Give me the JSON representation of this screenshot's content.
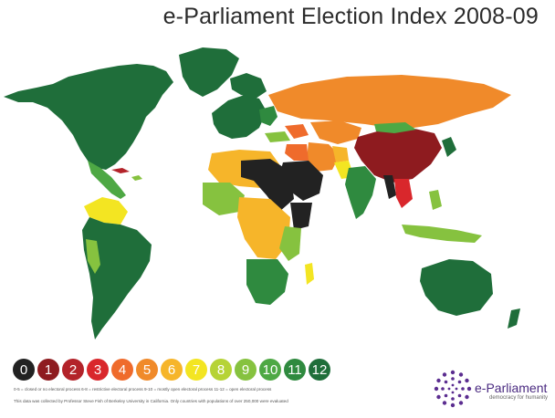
{
  "title": "e-Parliament Election Index 2008-09",
  "legend": {
    "items": [
      {
        "label": "0",
        "color": "#222222"
      },
      {
        "label": "1",
        "color": "#8e1b1f"
      },
      {
        "label": "2",
        "color": "#b3232a"
      },
      {
        "label": "3",
        "color": "#d9272c"
      },
      {
        "label": "4",
        "color": "#ef6b2c"
      },
      {
        "label": "5",
        "color": "#f08a2a"
      },
      {
        "label": "6",
        "color": "#f6b52a"
      },
      {
        "label": "7",
        "color": "#f3e522"
      },
      {
        "label": "8",
        "color": "#b6d336"
      },
      {
        "label": "9",
        "color": "#86c23f"
      },
      {
        "label": "10",
        "color": "#4ea844"
      },
      {
        "label": "11",
        "color": "#2f8a3f"
      },
      {
        "label": "12",
        "color": "#1f6e3a"
      }
    ],
    "description": "0-5 = closed or no electoral process   6-8 = restrictive electoral process 9-10 = mostly open electoral process 11-12 = open electoral process"
  },
  "footnote": "This data was collected by Professor Steve Fish of Berkeley University in California. Only countries with populations of over 250,000 were evaluated",
  "logo": {
    "name": "e-Parliament",
    "tagline": "democracy for humanity",
    "color": "#5b2d90"
  }
}
